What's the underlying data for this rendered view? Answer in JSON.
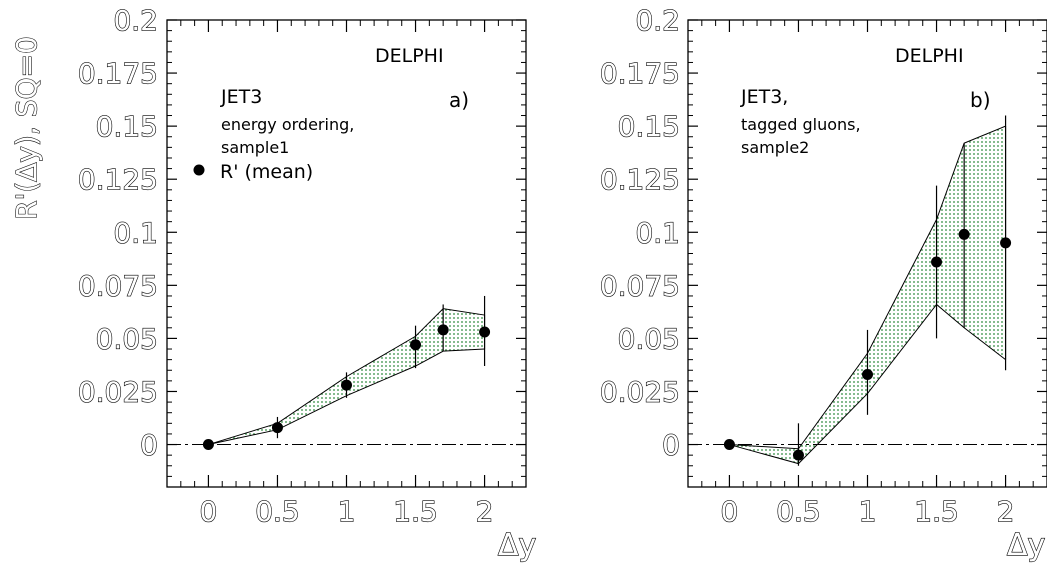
{
  "chart_data": [
    {
      "type": "line",
      "ylabel": "R'(Δy), SQ=0",
      "xlabel": "Δy",
      "xlim": [
        -0.3,
        2.3
      ],
      "ylim": [
        -0.02,
        0.2
      ],
      "xticks": [
        0,
        0.5,
        1,
        1.5,
        2
      ],
      "xtick_labels": [
        "0",
        "0.5",
        "1",
        "1.5",
        "2"
      ],
      "yticks": [
        0,
        0.025,
        0.05,
        0.075,
        0.1,
        0.125,
        0.15,
        0.175,
        0.2
      ],
      "ytick_labels": [
        "0",
        "0.025",
        "0.05",
        "0.075",
        "0.1",
        "0.125",
        "0.15",
        "0.175",
        "0.2"
      ],
      "annotations": [
        "DELPHI",
        "JET3",
        "energy ordering,",
        "sample1",
        "a)"
      ],
      "legend": "R' (mean)",
      "points": {
        "x": [
          0,
          0.5,
          1.0,
          1.5,
          1.7,
          2.0
        ],
        "y": [
          0.0,
          0.008,
          0.028,
          0.047,
          0.054,
          0.053
        ],
        "err_low": [
          0.0,
          0.005,
          0.006,
          0.011,
          0.01,
          0.016
        ],
        "err_high": [
          0.0,
          0.005,
          0.006,
          0.009,
          0.012,
          0.017
        ]
      },
      "band": {
        "x": [
          0,
          0.5,
          1.0,
          1.5,
          1.7,
          2.0
        ],
        "upper": [
          0.0,
          0.01,
          0.032,
          0.051,
          0.064,
          0.061
        ],
        "lower": [
          0.0,
          0.007,
          0.023,
          0.037,
          0.044,
          0.045
        ]
      },
      "reference_line": 0
    },
    {
      "type": "line",
      "xlabel": "Δy",
      "xlim": [
        -0.3,
        2.3
      ],
      "ylim": [
        -0.02,
        0.2
      ],
      "xticks": [
        0,
        0.5,
        1,
        1.5,
        2
      ],
      "xtick_labels": [
        "0",
        "0.5",
        "1",
        "1.5",
        "2"
      ],
      "yticks": [
        0,
        0.025,
        0.05,
        0.075,
        0.1,
        0.125,
        0.15,
        0.175,
        0.2
      ],
      "ytick_labels": [
        "0",
        "0.025",
        "0.05",
        "0.075",
        "0.1",
        "0.125",
        "0.15",
        "0.175",
        "0.2"
      ],
      "annotations": [
        "DELPHI",
        "JET3,",
        "tagged gluons,",
        "sample2",
        "b)"
      ],
      "points": {
        "x": [
          0,
          0.5,
          1.0,
          1.5,
          1.7,
          2.0
        ],
        "y": [
          0.0,
          -0.005,
          0.033,
          0.086,
          0.099,
          0.095
        ],
        "err_low": [
          0.0,
          0.005,
          0.019,
          0.036,
          0.044,
          0.06
        ],
        "err_high": [
          0.0,
          0.015,
          0.021,
          0.036,
          0.043,
          0.06
        ]
      },
      "band": {
        "x": [
          0,
          0.5,
          1.0,
          1.5,
          1.7,
          2.0
        ],
        "upper": [
          0.0,
          -0.002,
          0.043,
          0.106,
          0.142,
          0.15
        ],
        "lower": [
          0.0,
          -0.009,
          0.024,
          0.066,
          0.055,
          0.04
        ]
      },
      "reference_line": 0
    }
  ]
}
